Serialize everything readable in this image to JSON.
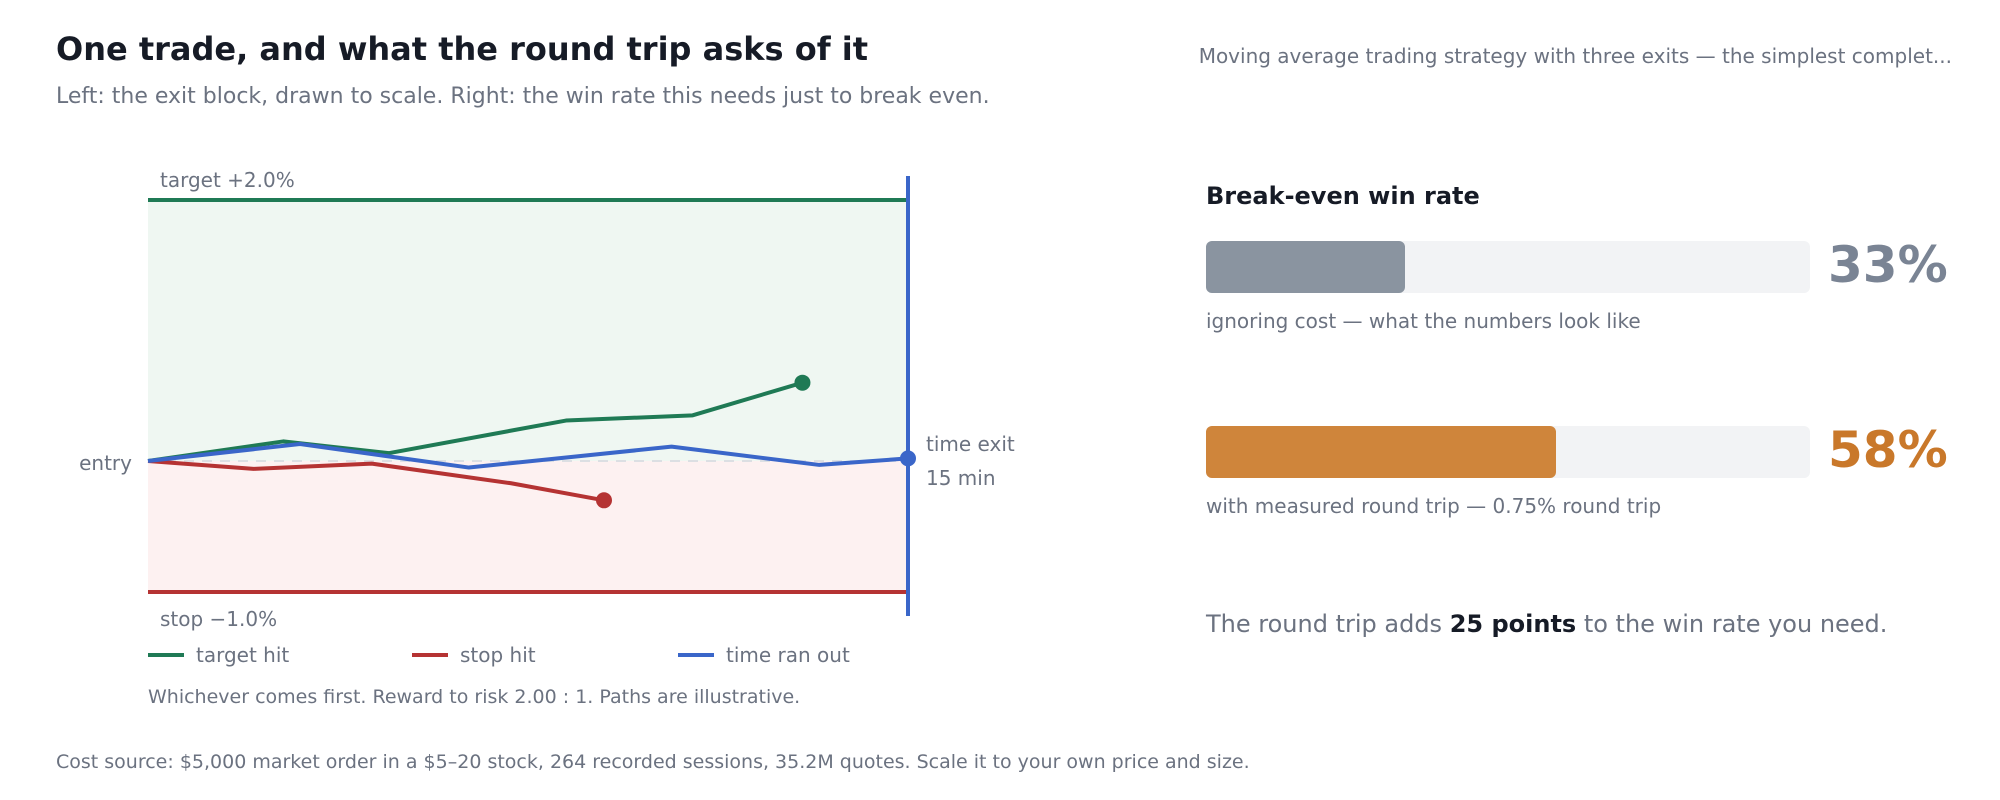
{
  "header": {
    "title": "One trade, and what the round trip asks of it",
    "subtitle": "Left: the exit block, drawn to scale. Right: the win rate this needs just to break even.",
    "reference": "Moving average trading strategy with three exits — the simplest complet..."
  },
  "chart_data": {
    "type": "line",
    "x": [
      0,
      1,
      2,
      3,
      4,
      5,
      6,
      7,
      8,
      9
    ],
    "xlim": [
      0,
      9
    ],
    "ylim": [
      -1.0,
      2.0
    ],
    "levels": {
      "target_label": "target +2.0%",
      "target_value": 2.0,
      "stop_label": "stop −1.0%",
      "stop_value": -1.0,
      "entry_label": "entry",
      "entry_value": 0,
      "time_exit_label_1": "time exit",
      "time_exit_label_2": "15 min",
      "time_exit_x": 9
    },
    "series": [
      {
        "name": "target hit",
        "color": "#1f7a55",
        "points": [
          [
            0,
            0
          ],
          [
            1.6,
            0.15
          ],
          [
            2.85,
            0.06
          ],
          [
            4.95,
            0.31
          ],
          [
            6.45,
            0.35
          ],
          [
            7.75,
            0.6
          ]
        ],
        "end_marker": true
      },
      {
        "name": "stop hit",
        "color": "#b53333",
        "points": [
          [
            0,
            0
          ],
          [
            1.25,
            -0.06
          ],
          [
            2.65,
            -0.02
          ],
          [
            4.3,
            -0.17
          ],
          [
            5.4,
            -0.3
          ]
        ],
        "end_marker": true
      },
      {
        "name": "time ran out",
        "color": "#3a66c9",
        "points": [
          [
            0,
            0
          ],
          [
            1.8,
            0.13
          ],
          [
            3.8,
            -0.05
          ],
          [
            6.2,
            0.11
          ],
          [
            7.95,
            -0.03
          ],
          [
            9,
            0.02
          ]
        ],
        "end_marker": true
      }
    ],
    "legend": {
      "placement": "bottom-left"
    }
  },
  "chart_caption": "Whichever comes first. Reward to risk 2.00 : 1. Paths are illustrative.",
  "breakeven": {
    "title": "Break-even win rate",
    "bars": [
      {
        "value": 33,
        "value_label": "33%",
        "label": "ignoring cost — what the numbers look like",
        "color": "#8a94a0",
        "text_color": "#7a8494"
      },
      {
        "value": 58,
        "value_label": "58%",
        "label": "with measured round trip — 0.75% round trip",
        "color": "#cf853b",
        "text_color": "#c9782a"
      }
    ],
    "summary_pre": "The round trip adds ",
    "summary_strong": "25 points",
    "summary_post": " to the win rate you need."
  },
  "footer": "Cost source: $5,000 market order in a $5–20 stock, 264 recorded sessions, 35.2M quotes. Scale it to your own price and size."
}
